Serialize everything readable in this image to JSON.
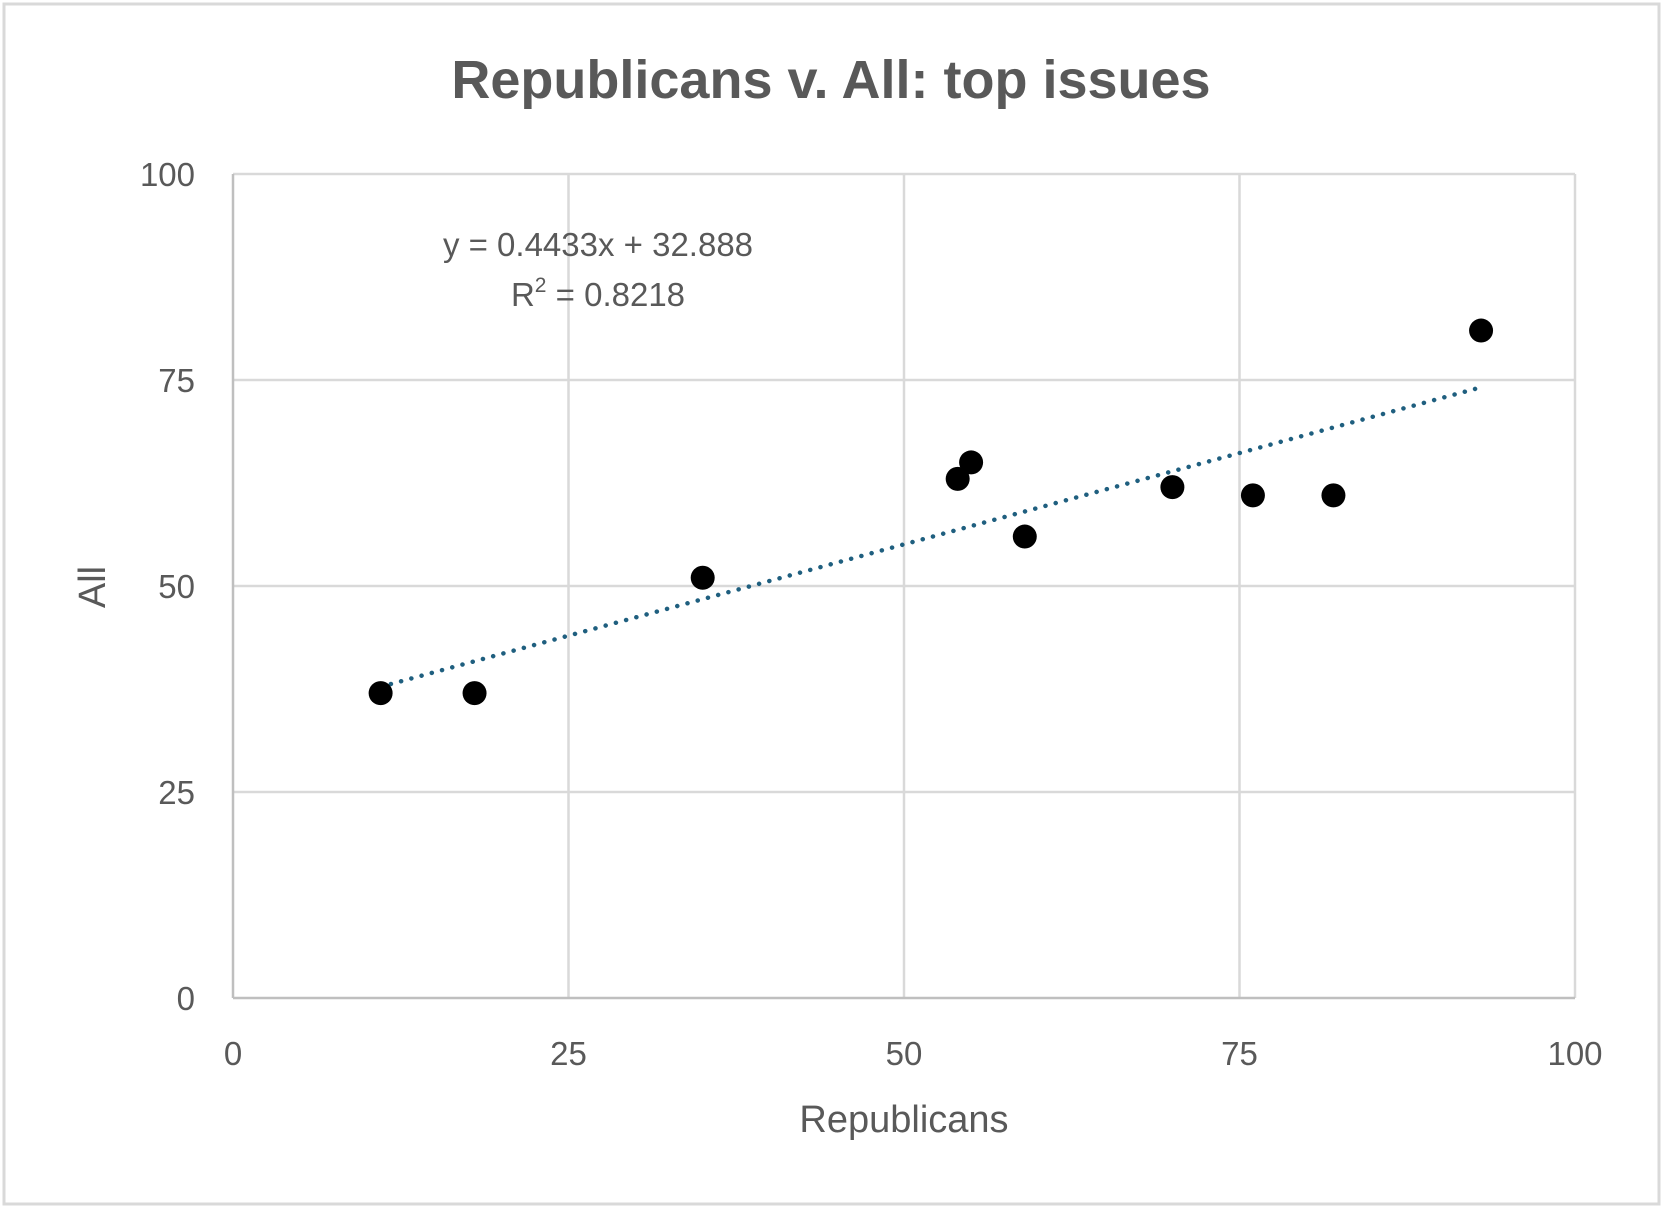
{
  "chart_data": {
    "type": "scatter",
    "title": "Republicans v. All: top issues",
    "xlabel": "Republicans",
    "ylabel": "All",
    "xlim": [
      0,
      100
    ],
    "ylim": [
      0,
      100
    ],
    "x_ticks": [
      0,
      25,
      50,
      75,
      100
    ],
    "y_ticks": [
      0,
      25,
      50,
      75,
      100
    ],
    "grid": true,
    "legend": "none",
    "series": [
      {
        "color": "#000000",
        "points": [
          {
            "x": 11,
            "y": 37
          },
          {
            "x": 18,
            "y": 37
          },
          {
            "x": 35,
            "y": 51
          },
          {
            "x": 54,
            "y": 63
          },
          {
            "x": 55,
            "y": 65
          },
          {
            "x": 59,
            "y": 56
          },
          {
            "x": 70,
            "y": 62
          },
          {
            "x": 76,
            "y": 61
          },
          {
            "x": 82,
            "y": 61
          },
          {
            "x": 93,
            "y": 81
          }
        ]
      }
    ],
    "trendline": {
      "type": "linear",
      "style": "dotted",
      "color": "#1f5f7f",
      "slope": 0.4433,
      "intercept": 32.888,
      "x_range": [
        11,
        93
      ],
      "equation_text": "y = 0.4433x + 32.888",
      "r2_prefix": "R",
      "r2_exponent": "2",
      "r2_value_text": " = 0.8218"
    }
  },
  "colors": {
    "text": "#595959",
    "grid": "#d9d9d9",
    "axis": "#bfbfbf",
    "border": "#d9d9d9"
  }
}
